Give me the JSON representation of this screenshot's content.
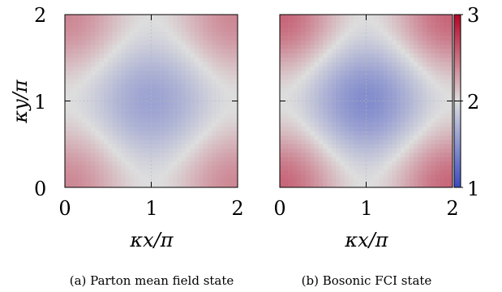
{
  "chart_data": [
    {
      "type": "heatmap",
      "caption": "(a) Parton mean field state",
      "xlabel": "κx/π",
      "ylabel": "κy/π",
      "xlim": [
        0,
        2
      ],
      "ylim": [
        0,
        2
      ],
      "x_ticks": [
        "0",
        "1",
        "2"
      ],
      "y_ticks": [
        "0",
        "1",
        "2"
      ],
      "grid": true,
      "z_model": "2 + A*(cos(pi*x) + cos(pi*y))/2",
      "z_amplitude": 0.4,
      "z_center": [
        1,
        1
      ],
      "z_center_value": 1.6,
      "z_corner_value": 2.4
    },
    {
      "type": "heatmap",
      "caption": "(b) Bosonic FCI state",
      "xlabel": "κx/π",
      "ylabel": "",
      "xlim": [
        0,
        2
      ],
      "ylim": [
        0,
        2
      ],
      "x_ticks": [
        "0",
        "1",
        "2"
      ],
      "grid": true,
      "z_model": "2 + A*(cos(pi*x) + cos(pi*y))/2",
      "z_amplitude": 0.55,
      "z_center": [
        1,
        1
      ],
      "z_center_value": 1.45,
      "z_corner_value": 2.55
    }
  ],
  "colorbar": {
    "range": [
      1,
      3
    ],
    "ticks": [
      "1",
      "2",
      "3"
    ],
    "colors": {
      "low": "#3b4cc0",
      "mid": "#dddddd",
      "high": "#b40426"
    }
  }
}
